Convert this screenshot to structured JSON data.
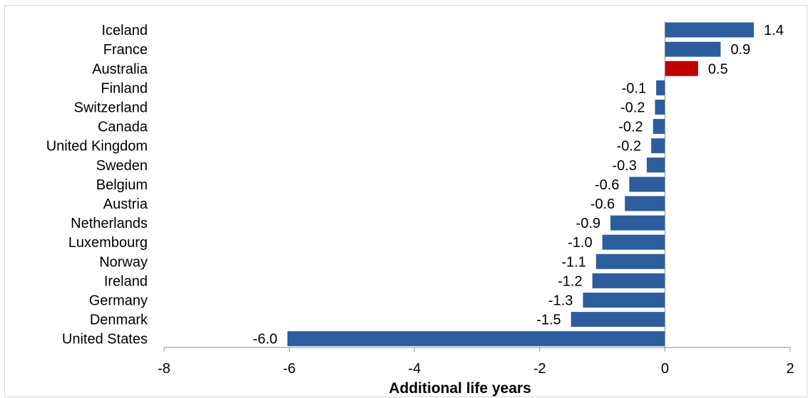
{
  "chart_data": {
    "type": "bar",
    "orientation": "horizontal",
    "title": "",
    "xlabel": "Additional life years",
    "ylabel": "",
    "xlim": [
      -8,
      2
    ],
    "xticks": [
      "-8",
      "-6",
      "-4",
      "-2",
      "0",
      "2"
    ],
    "grid": false,
    "legend": "none",
    "categories": [
      "Iceland",
      "France",
      "Australia",
      "Finland",
      "Switzerland",
      "Canada",
      "United Kingdom",
      "Sweden",
      "Belgium",
      "Austria",
      "Netherlands",
      "Luxembourg",
      "Norway",
      "Ireland",
      "Germany",
      "Denmark",
      "United States"
    ],
    "values": [
      1.4,
      0.9,
      0.5,
      -0.1,
      -0.2,
      -0.2,
      -0.2,
      -0.3,
      -0.6,
      -0.6,
      -0.9,
      -1.0,
      -1.1,
      -1.2,
      -1.3,
      -1.5,
      -6.0
    ],
    "data_labels": [
      "1.4",
      "0.9",
      "0.5",
      "-0.1",
      "-0.2",
      "-0.2",
      "-0.2",
      "-0.3",
      "-0.6",
      "-0.6",
      "-0.9",
      "-1.0",
      "-1.1",
      "-1.2",
      "-1.3",
      "-1.5",
      "-6.0"
    ],
    "bar_true_values": [
      1.42,
      0.89,
      0.53,
      -0.14,
      -0.16,
      -0.19,
      -0.22,
      -0.29,
      -0.57,
      -0.64,
      -0.87,
      -1.0,
      -1.1,
      -1.16,
      -1.31,
      -1.5,
      -6.03
    ],
    "colors": {
      "default": "#2e5d9e",
      "highlight": "#c00000"
    },
    "highlight_category": "Australia"
  }
}
